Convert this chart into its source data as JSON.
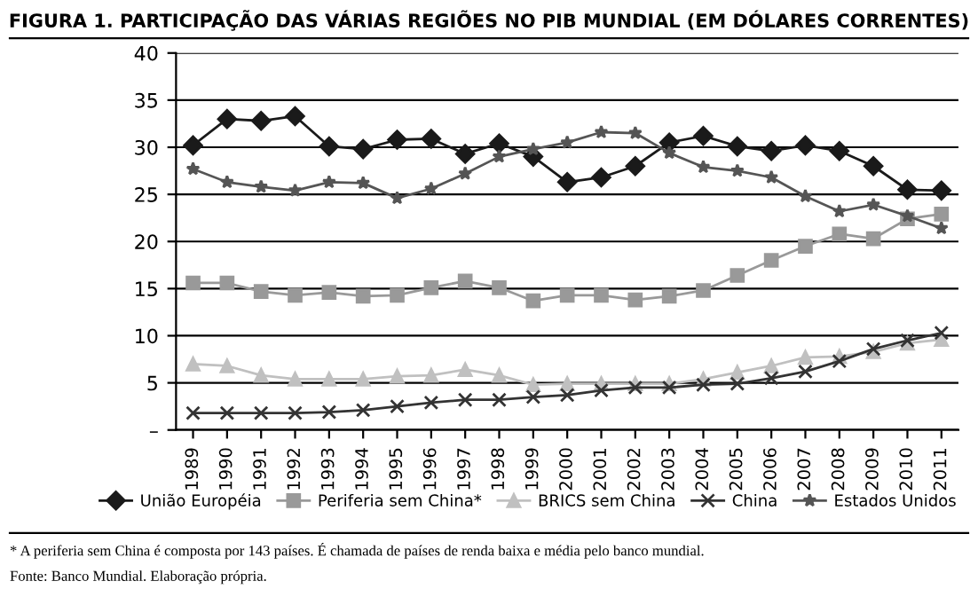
{
  "chart_data": {
    "type": "line",
    "title": "FIGURA 1. PARTICIPAÇÃO DAS VÁRIAS REGIÕES NO PIB MUNDIAL (EM DÓLARES CORRENTES)",
    "categories": [
      "1989",
      "1990",
      "1991",
      "1992",
      "1993",
      "1994",
      "1995",
      "1996",
      "1997",
      "1998",
      "1999",
      "2000",
      "2001",
      "2002",
      "2003",
      "2004",
      "2005",
      "2006",
      "2007",
      "2008",
      "2009",
      "2010",
      "2011"
    ],
    "ylim": [
      0,
      40
    ],
    "yticks": [
      {
        "value": 0,
        "label": "–"
      },
      5,
      10,
      15,
      20,
      25,
      30,
      35,
      40
    ],
    "grid": "y",
    "legend": "bottom",
    "series": [
      {
        "name": "União Européia",
        "color": "#1a1a1a",
        "marker": "diamond",
        "values": [
          30.2,
          33,
          32.8,
          33.3,
          30.1,
          29.8,
          30.8,
          30.9,
          29.3,
          30.4,
          29,
          26.3,
          26.8,
          28,
          30.5,
          31.2,
          30.1,
          29.6,
          30.2,
          29.6,
          28,
          25.5,
          25.4
        ]
      },
      {
        "name": "Periferia sem China*",
        "color": "#999999",
        "marker": "square",
        "values": [
          15.6,
          15.6,
          14.7,
          14.3,
          14.6,
          14.2,
          14.3,
          15.1,
          15.8,
          15.1,
          13.7,
          14.3,
          14.3,
          13.8,
          14.2,
          14.8,
          16.4,
          18,
          19.5,
          20.8,
          20.3,
          22.4,
          22.9
        ]
      },
      {
        "name": "BRICS sem China",
        "color": "#c0c0c0",
        "marker": "triangle",
        "values": [
          7,
          6.8,
          5.8,
          5.4,
          5.4,
          5.4,
          5.7,
          5.8,
          6.4,
          5.8,
          4.8,
          4.9,
          4.9,
          4.9,
          4.9,
          5.4,
          6.1,
          6.8,
          7.7,
          7.8,
          8.3,
          9.2,
          9.6
        ]
      },
      {
        "name": "China",
        "color": "#333333",
        "marker": "cross",
        "values": [
          1.8,
          1.8,
          1.8,
          1.8,
          1.9,
          2.1,
          2.5,
          2.9,
          3.2,
          3.2,
          3.5,
          3.7,
          4.2,
          4.5,
          4.5,
          4.8,
          4.9,
          5.5,
          6.2,
          7.3,
          8.6,
          9.5,
          10.3
        ]
      },
      {
        "name": "Estados Unidos",
        "color": "#555555",
        "marker": "star",
        "values": [
          27.7,
          26.3,
          25.8,
          25.4,
          26.3,
          26.2,
          24.6,
          25.6,
          27.2,
          29,
          29.8,
          30.5,
          31.6,
          31.5,
          29.4,
          27.9,
          27.5,
          26.8,
          24.8,
          23.2,
          23.9,
          22.7,
          21.4
        ]
      }
    ],
    "annotations": [
      "* A periferia sem China é composta por 143 países. É chamada de países de renda baixa e média pelo banco mundial.",
      "Fonte: Banco Mundial. Elaboração própria."
    ]
  }
}
